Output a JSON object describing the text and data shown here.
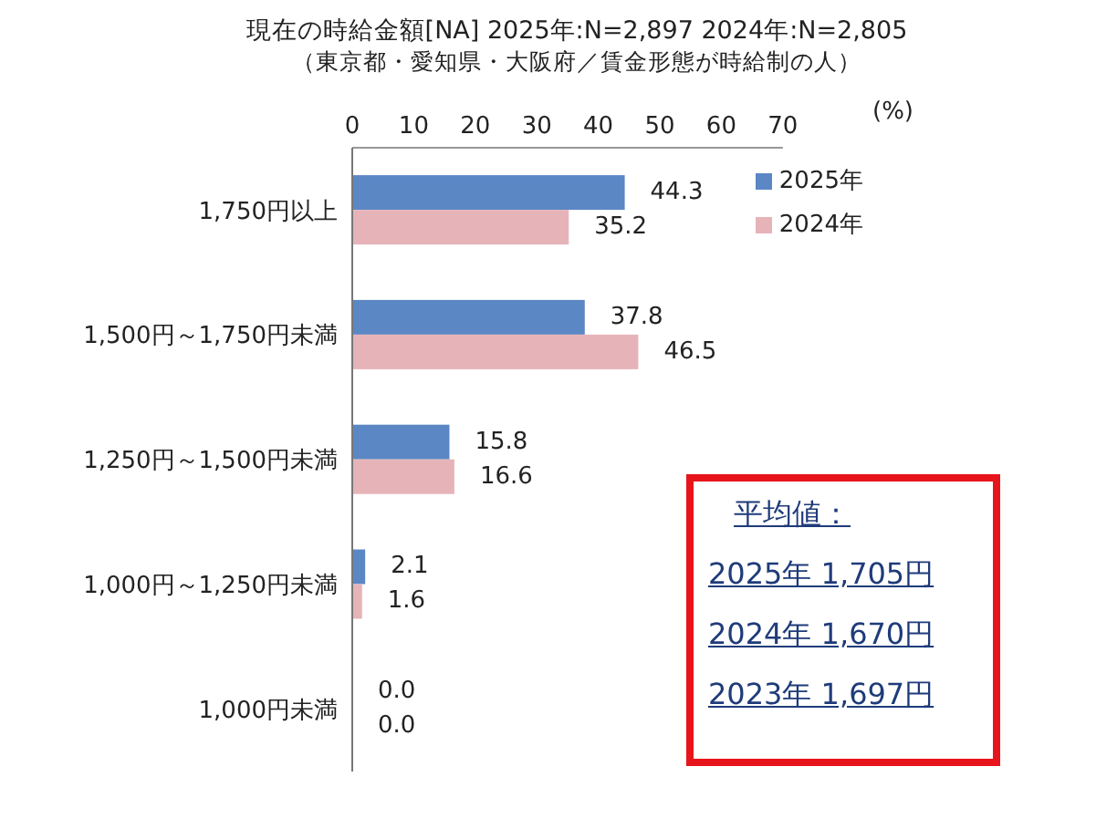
{
  "chart_data": {
    "type": "bar",
    "orientation": "horizontal",
    "title": "現在の時給金額[NA]  2025年:N=2,897  2024年:N=2,805",
    "subtitle": "（東京都・愛知県・大阪府／賃金形態が時給制の人）",
    "xlabel": "(%)",
    "categories": [
      "1,750円以上",
      "1,500円～1,750円未満",
      "1,250円～1,500円未満",
      "1,000円～1,250円未満",
      "1,000円未満"
    ],
    "series": [
      {
        "name": "2025年",
        "color": "#5b87c5",
        "values": [
          44.3,
          37.8,
          15.8,
          2.1,
          0.0
        ],
        "value_labels": [
          "44.3",
          "37.8",
          "15.8",
          "2.1",
          "0.0"
        ]
      },
      {
        "name": "2024年",
        "color": "#e6b4b8",
        "values": [
          35.2,
          46.5,
          16.6,
          1.6,
          0.0
        ],
        "value_labels": [
          "35.2",
          "46.5",
          "16.6",
          "1.6",
          "0.0"
        ]
      }
    ],
    "xlim": [
      0,
      70
    ],
    "xticks": [
      0,
      10,
      20,
      30,
      40,
      50,
      60,
      70
    ],
    "legend": "top right",
    "grid": false,
    "annotations": [
      "平均値：",
      "2025年 1,705円",
      "2024年 1,670円",
      "2023年 1,697円"
    ]
  }
}
